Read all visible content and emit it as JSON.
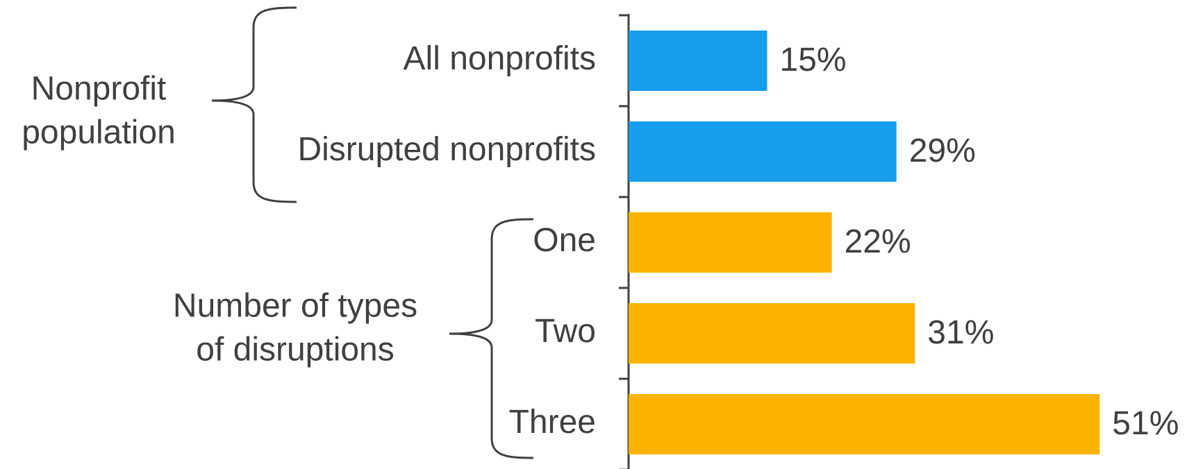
{
  "chart_data": {
    "type": "bar",
    "orientation": "horizontal",
    "categories": [
      "All nonprofits",
      "Disrupted nonprofits",
      "One",
      "Two",
      "Three"
    ],
    "values": [
      15,
      29,
      22,
      31,
      51
    ],
    "value_labels": [
      "15%",
      "29%",
      "22%",
      "31%",
      "51%"
    ],
    "colors": [
      "#189cec",
      "#189cec",
      "#fbb200",
      "#fbb200",
      "#fbb200"
    ],
    "xlim": [
      0,
      60
    ],
    "groups": [
      {
        "label": [
          "Nonprofit",
          "population"
        ]
      },
      {
        "label": [
          "Number of types",
          "of disruptions"
        ]
      }
    ]
  }
}
